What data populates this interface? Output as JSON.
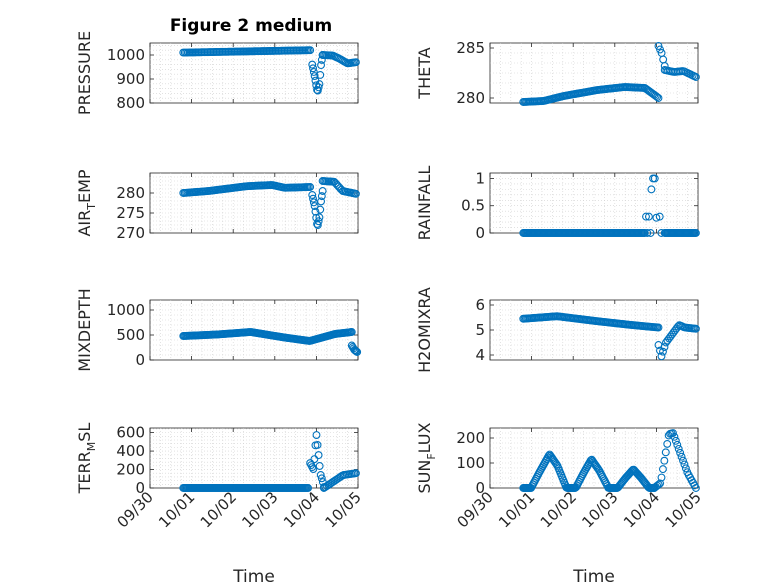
{
  "figure_title": "Figure 2 medium",
  "colors": {
    "marker": "#0072BD",
    "axis": "#262626",
    "grid": "#d0d0d0"
  },
  "chart_data": [
    {
      "type": "scatter",
      "id": "pressure",
      "title": "Figure 2 medium",
      "ylabel": "PRESSURE",
      "ylabel_sub": "",
      "ylim": [
        800,
        1050
      ],
      "yticks": [
        800,
        900,
        1000
      ],
      "xlim": [
        0,
        5
      ],
      "xticks": [
        0,
        1,
        2,
        3,
        4,
        5
      ],
      "xticklabels": [],
      "xlabel": "",
      "grid": true,
      "segments": [
        {
          "x0": 0.8,
          "x1": 3.85,
          "n": 85,
          "pts": [
            [
              0,
              1010
            ],
            [
              0.5,
              1015
            ],
            [
              1.0,
              1020
            ],
            [
              1.4,
              1022
            ],
            [
              1.8,
              1022
            ],
            [
              2.2,
              1021
            ],
            [
              2.6,
              1019
            ],
            [
              3.05,
              1014
            ]
          ]
        },
        {
          "x0": 3.9,
          "x1": 4.15,
          "n": 14,
          "pts": [
            [
              0,
              960
            ],
            [
              0.2,
              920
            ],
            [
              0.5,
              845
            ],
            [
              0.7,
              880
            ],
            [
              0.85,
              960
            ],
            [
              1.0,
              1000
            ]
          ]
        },
        {
          "x0": 4.15,
          "x1": 4.95,
          "n": 24,
          "pts": [
            [
              0,
              1000
            ],
            [
              0.3,
              998
            ],
            [
              0.5,
              985
            ],
            [
              0.75,
              965
            ],
            [
              1.0,
              970
            ]
          ]
        }
      ]
    },
    {
      "type": "scatter",
      "id": "theta",
      "title": "",
      "ylabel": "THETA",
      "ylabel_sub": "",
      "ylim": [
        279.5,
        285.5
      ],
      "yticks": [
        280,
        285
      ],
      "xlim": [
        0,
        5
      ],
      "xticks": [
        0,
        1,
        2,
        3,
        4,
        5
      ],
      "xticklabels": [],
      "xlabel": "",
      "grid": true,
      "segments": [
        {
          "x0": 0.8,
          "x1": 4.05,
          "n": 100,
          "pts": [
            [
              0,
              279.6
            ],
            [
              0.15,
              279.7
            ],
            [
              0.3,
              280.2
            ],
            [
              0.55,
              280.8
            ],
            [
              0.75,
              281.1
            ],
            [
              0.9,
              281.0
            ],
            [
              1.0,
              280.0
            ],
            [
              1.15,
              280.1
            ],
            [
              1.5,
              280.3
            ],
            [
              1.9,
              280.8
            ],
            [
              2.3,
              281.3
            ],
            [
              2.6,
              281.6
            ],
            [
              2.85,
              281.8
            ],
            [
              3.1,
              282.0
            ],
            [
              3.25,
              282.2
            ]
          ]
        },
        {
          "x0": 4.05,
          "x1": 4.2,
          "n": 5,
          "pts": [
            [
              0,
              285.2
            ],
            [
              0.5,
              284.5
            ],
            [
              1.0,
              283.2
            ]
          ]
        },
        {
          "x0": 4.2,
          "x1": 4.95,
          "n": 20,
          "pts": [
            [
              0,
              282.8
            ],
            [
              0.3,
              282.6
            ],
            [
              0.6,
              282.7
            ],
            [
              1.0,
              282.1
            ]
          ]
        }
      ]
    },
    {
      "type": "scatter",
      "id": "air_temp",
      "title": "",
      "ylabel": "AIR",
      "ylabel_sub": "T",
      "ylabel_suffix": "EMP",
      "ylim": [
        270,
        285
      ],
      "yticks": [
        270,
        275,
        280
      ],
      "xlim": [
        0,
        5
      ],
      "xticks": [
        0,
        1,
        2,
        3,
        4,
        5
      ],
      "xticklabels": [],
      "xlabel": "",
      "grid": true,
      "segments": [
        {
          "x0": 0.8,
          "x1": 3.85,
          "n": 90,
          "pts": [
            [
              0,
              280.0
            ],
            [
              0.2,
              280.5
            ],
            [
              0.5,
              281.7
            ],
            [
              0.7,
              282.0
            ],
            [
              0.8,
              281.3
            ],
            [
              1.0,
              281.5
            ],
            [
              1.5,
              282.4
            ],
            [
              2.0,
              283.0
            ],
            [
              2.5,
              283.6
            ],
            [
              3.05,
              283.8
            ]
          ]
        },
        {
          "x0": 3.9,
          "x1": 4.15,
          "n": 14,
          "pts": [
            [
              0,
              279.5
            ],
            [
              0.25,
              276.5
            ],
            [
              0.5,
              271.5
            ],
            [
              0.7,
              274.0
            ],
            [
              0.85,
              278.0
            ],
            [
              1.0,
              280.5
            ]
          ]
        },
        {
          "x0": 4.15,
          "x1": 4.95,
          "n": 24,
          "pts": [
            [
              0,
              283.0
            ],
            [
              0.35,
              282.8
            ],
            [
              0.6,
              280.5
            ],
            [
              1.0,
              279.8
            ]
          ]
        }
      ]
    },
    {
      "type": "scatter",
      "id": "rainfall",
      "title": "",
      "ylabel": "RAINFALL",
      "ylabel_sub": "",
      "ylim": [
        0,
        1.1
      ],
      "yticks": [
        0,
        0.5,
        1
      ],
      "xlim": [
        0,
        5
      ],
      "xticks": [
        0,
        1,
        2,
        3,
        4,
        5
      ],
      "xticklabels": [],
      "xlabel": "",
      "grid": true,
      "segments": [
        {
          "x0": 0.8,
          "x1": 3.7,
          "n": 110,
          "pts": [
            [
              0,
              0
            ],
            [
              1,
              0
            ]
          ]
        },
        {
          "x0": 4.2,
          "x1": 4.95,
          "n": 30,
          "pts": [
            [
              0,
              0
            ],
            [
              1,
              0
            ]
          ]
        }
      ],
      "points": [
        [
          3.75,
          0.3
        ],
        [
          3.82,
          0.3
        ],
        [
          3.88,
          0.8
        ],
        [
          3.92,
          1.0
        ],
        [
          3.96,
          1.0
        ],
        [
          4.0,
          0.28
        ],
        [
          4.08,
          0.3
        ],
        [
          3.72,
          0.0
        ],
        [
          3.78,
          0.0
        ],
        [
          3.86,
          0.0
        ],
        [
          4.12,
          0.0
        ]
      ]
    },
    {
      "type": "scatter",
      "id": "mixdepth",
      "title": "",
      "ylabel": "MIXDEPTH",
      "ylabel_sub": "",
      "ylim": [
        0,
        1200
      ],
      "yticks": [
        0,
        500,
        1000
      ],
      "xlim": [
        0,
        5
      ],
      "xticks": [
        0,
        1,
        2,
        3,
        4,
        5
      ],
      "xticklabels": [],
      "xlabel": "",
      "grid": true,
      "segments": [
        {
          "x0": 0.8,
          "x1": 4.85,
          "n": 150,
          "pts": [
            [
              0,
              480
            ],
            [
              0.2,
              510
            ],
            [
              0.4,
              560
            ],
            [
              0.6,
              450
            ],
            [
              0.75,
              380
            ],
            [
              0.9,
              520
            ],
            [
              1.15,
              620
            ],
            [
              1.4,
              700
            ],
            [
              1.7,
              750
            ],
            [
              1.95,
              780
            ],
            [
              2.15,
              560
            ],
            [
              2.35,
              470
            ],
            [
              2.55,
              430
            ],
            [
              2.75,
              570
            ],
            [
              2.95,
              820
            ],
            [
              3.2,
              1000
            ],
            [
              3.35,
              1130
            ],
            [
              3.5,
              900
            ],
            [
              3.7,
              820
            ],
            [
              3.9,
              850
            ],
            [
              4.05,
              780
            ]
          ]
        },
        {
          "x0": 4.85,
          "x1": 4.98,
          "n": 7,
          "pts": [
            [
              0,
              290
            ],
            [
              0.5,
              200
            ],
            [
              1.0,
              160
            ]
          ]
        }
      ]
    },
    {
      "type": "scatter",
      "id": "h2omixra",
      "title": "",
      "ylabel": "H2OMIXRA",
      "ylabel_sub": "",
      "ylim": [
        3.8,
        6.2
      ],
      "yticks": [
        4,
        5,
        6
      ],
      "xlim": [
        0,
        5
      ],
      "xticks": [
        0,
        1,
        2,
        3,
        4,
        5
      ],
      "xticklabels": [],
      "xlabel": "",
      "grid": true,
      "segments": [
        {
          "x0": 0.8,
          "x1": 4.05,
          "n": 105,
          "pts": [
            [
              0,
              5.45
            ],
            [
              0.25,
              5.55
            ],
            [
              0.55,
              5.35
            ],
            [
              0.8,
              5.2
            ],
            [
              1.0,
              5.1
            ],
            [
              1.3,
              5.15
            ],
            [
              1.6,
              5.2
            ],
            [
              1.95,
              5.3
            ],
            [
              2.25,
              5.55
            ],
            [
              2.6,
              5.75
            ],
            [
              2.9,
              5.8
            ],
            [
              3.05,
              5.95
            ],
            [
              3.15,
              5.7
            ],
            [
              3.25,
              5.55
            ]
          ]
        },
        {
          "x0": 4.05,
          "x1": 4.95,
          "n": 26,
          "pts": [
            [
              0,
              4.4
            ],
            [
              0.08,
              3.95
            ],
            [
              0.2,
              4.5
            ],
            [
              0.4,
              4.9
            ],
            [
              0.55,
              5.2
            ],
            [
              0.7,
              5.1
            ],
            [
              1.0,
              5.05
            ]
          ]
        }
      ]
    },
    {
      "type": "scatter",
      "id": "terr_msl",
      "title": "",
      "ylabel": "TERR",
      "ylabel_sub": "M",
      "ylabel_suffix": "SL",
      "ylim": [
        0,
        650
      ],
      "yticks": [
        0,
        200,
        400,
        600
      ],
      "xlim": [
        0,
        5
      ],
      "xticks": [
        0,
        1,
        2,
        3,
        4,
        5
      ],
      "xticklabels": [
        "09/30",
        "10/01",
        "10/02",
        "10/03",
        "10/04",
        "10/05"
      ],
      "xlabel": "Time",
      "grid": true,
      "segments": [
        {
          "x0": 0.8,
          "x1": 3.8,
          "n": 110,
          "pts": [
            [
              0,
              0
            ],
            [
              1,
              0
            ]
          ]
        },
        {
          "x0": 3.85,
          "x1": 4.18,
          "n": 14,
          "pts": [
            [
              0,
              270
            ],
            [
              0.25,
              200
            ],
            [
              0.45,
              590
            ],
            [
              0.6,
              380
            ],
            [
              0.75,
              150
            ],
            [
              0.9,
              80
            ],
            [
              1.0,
              10
            ]
          ]
        },
        {
          "x0": 4.18,
          "x1": 4.95,
          "n": 22,
          "pts": [
            [
              0,
              0
            ],
            [
              0.3,
              70
            ],
            [
              0.6,
              140
            ],
            [
              1.0,
              160
            ]
          ]
        }
      ]
    },
    {
      "type": "scatter",
      "id": "sun_flux",
      "title": "",
      "ylabel": "SUN",
      "ylabel_sub": "F",
      "ylabel_suffix": "LUX",
      "ylim": [
        0,
        240
      ],
      "yticks": [
        0,
        100,
        200
      ],
      "xlim": [
        0,
        5
      ],
      "xticks": [
        0,
        1,
        2,
        3,
        4,
        5
      ],
      "xticklabels": [
        "09/30",
        "10/01",
        "10/02",
        "10/03",
        "10/04",
        "10/05"
      ],
      "xlabel": "Time",
      "grid": true,
      "segments": [
        {
          "x0": 0.8,
          "x1": 3.95,
          "n": 135,
          "pts": [
            [
              0,
              0
            ],
            [
              0.06,
              0
            ],
            [
              0.12,
              60
            ],
            [
              0.2,
              135
            ],
            [
              0.26,
              90
            ],
            [
              0.33,
              0
            ],
            [
              0.4,
              0
            ],
            [
              0.46,
              60
            ],
            [
              0.52,
              115
            ],
            [
              0.58,
              70
            ],
            [
              0.65,
              0
            ],
            [
              0.72,
              0
            ],
            [
              0.78,
              40
            ],
            [
              0.84,
              75
            ],
            [
              0.9,
              40
            ],
            [
              0.96,
              0
            ],
            [
              1.0,
              0
            ]
          ]
        },
        {
          "x0": 3.95,
          "x1": 4.95,
          "n": 30,
          "pts": [
            [
              0,
              0
            ],
            [
              0.15,
              20
            ],
            [
              0.35,
              215
            ],
            [
              0.45,
              220
            ],
            [
              0.6,
              150
            ],
            [
              0.8,
              60
            ],
            [
              1.0,
              0
            ]
          ]
        }
      ]
    }
  ]
}
